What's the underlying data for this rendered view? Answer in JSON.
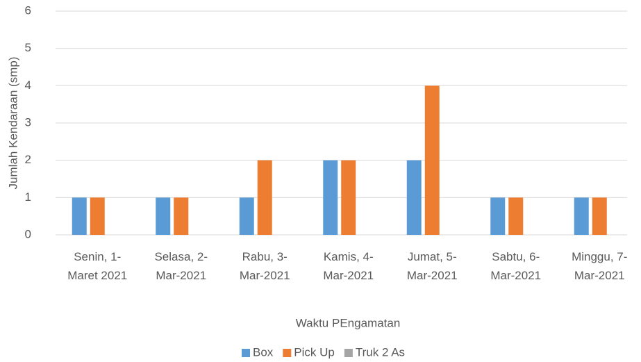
{
  "chart_data": {
    "type": "bar",
    "categories": [
      "Senin, 1-\nMaret 2021",
      "Selasa, 2-\nMar-2021",
      "Rabu, 3-\nMar-2021",
      "Kamis, 4-\nMar-2021",
      "Jumat, 5-\nMar-2021",
      "Sabtu, 6-\nMar-2021",
      "Minggu, 7-\nMar-2021"
    ],
    "series": [
      {
        "name": "Box",
        "color": "#5b9bd5",
        "values": [
          1,
          1,
          1,
          2,
          2,
          1,
          1
        ]
      },
      {
        "name": "Pick Up",
        "color": "#ed7d31",
        "values": [
          1,
          1,
          2,
          2,
          4,
          1,
          1
        ]
      },
      {
        "name": "Truk 2 As",
        "color": "#a5a5a5",
        "values": [
          0,
          0,
          0,
          0,
          0,
          0,
          0
        ]
      }
    ],
    "xlabel": "Waktu PEngamatan",
    "ylabel": "Jumlah Kendaraan (smp)",
    "ylim": [
      0,
      6
    ],
    "yticks": [
      0,
      1,
      2,
      3,
      4,
      5,
      6
    ],
    "grid": true,
    "legend": "bottom"
  }
}
